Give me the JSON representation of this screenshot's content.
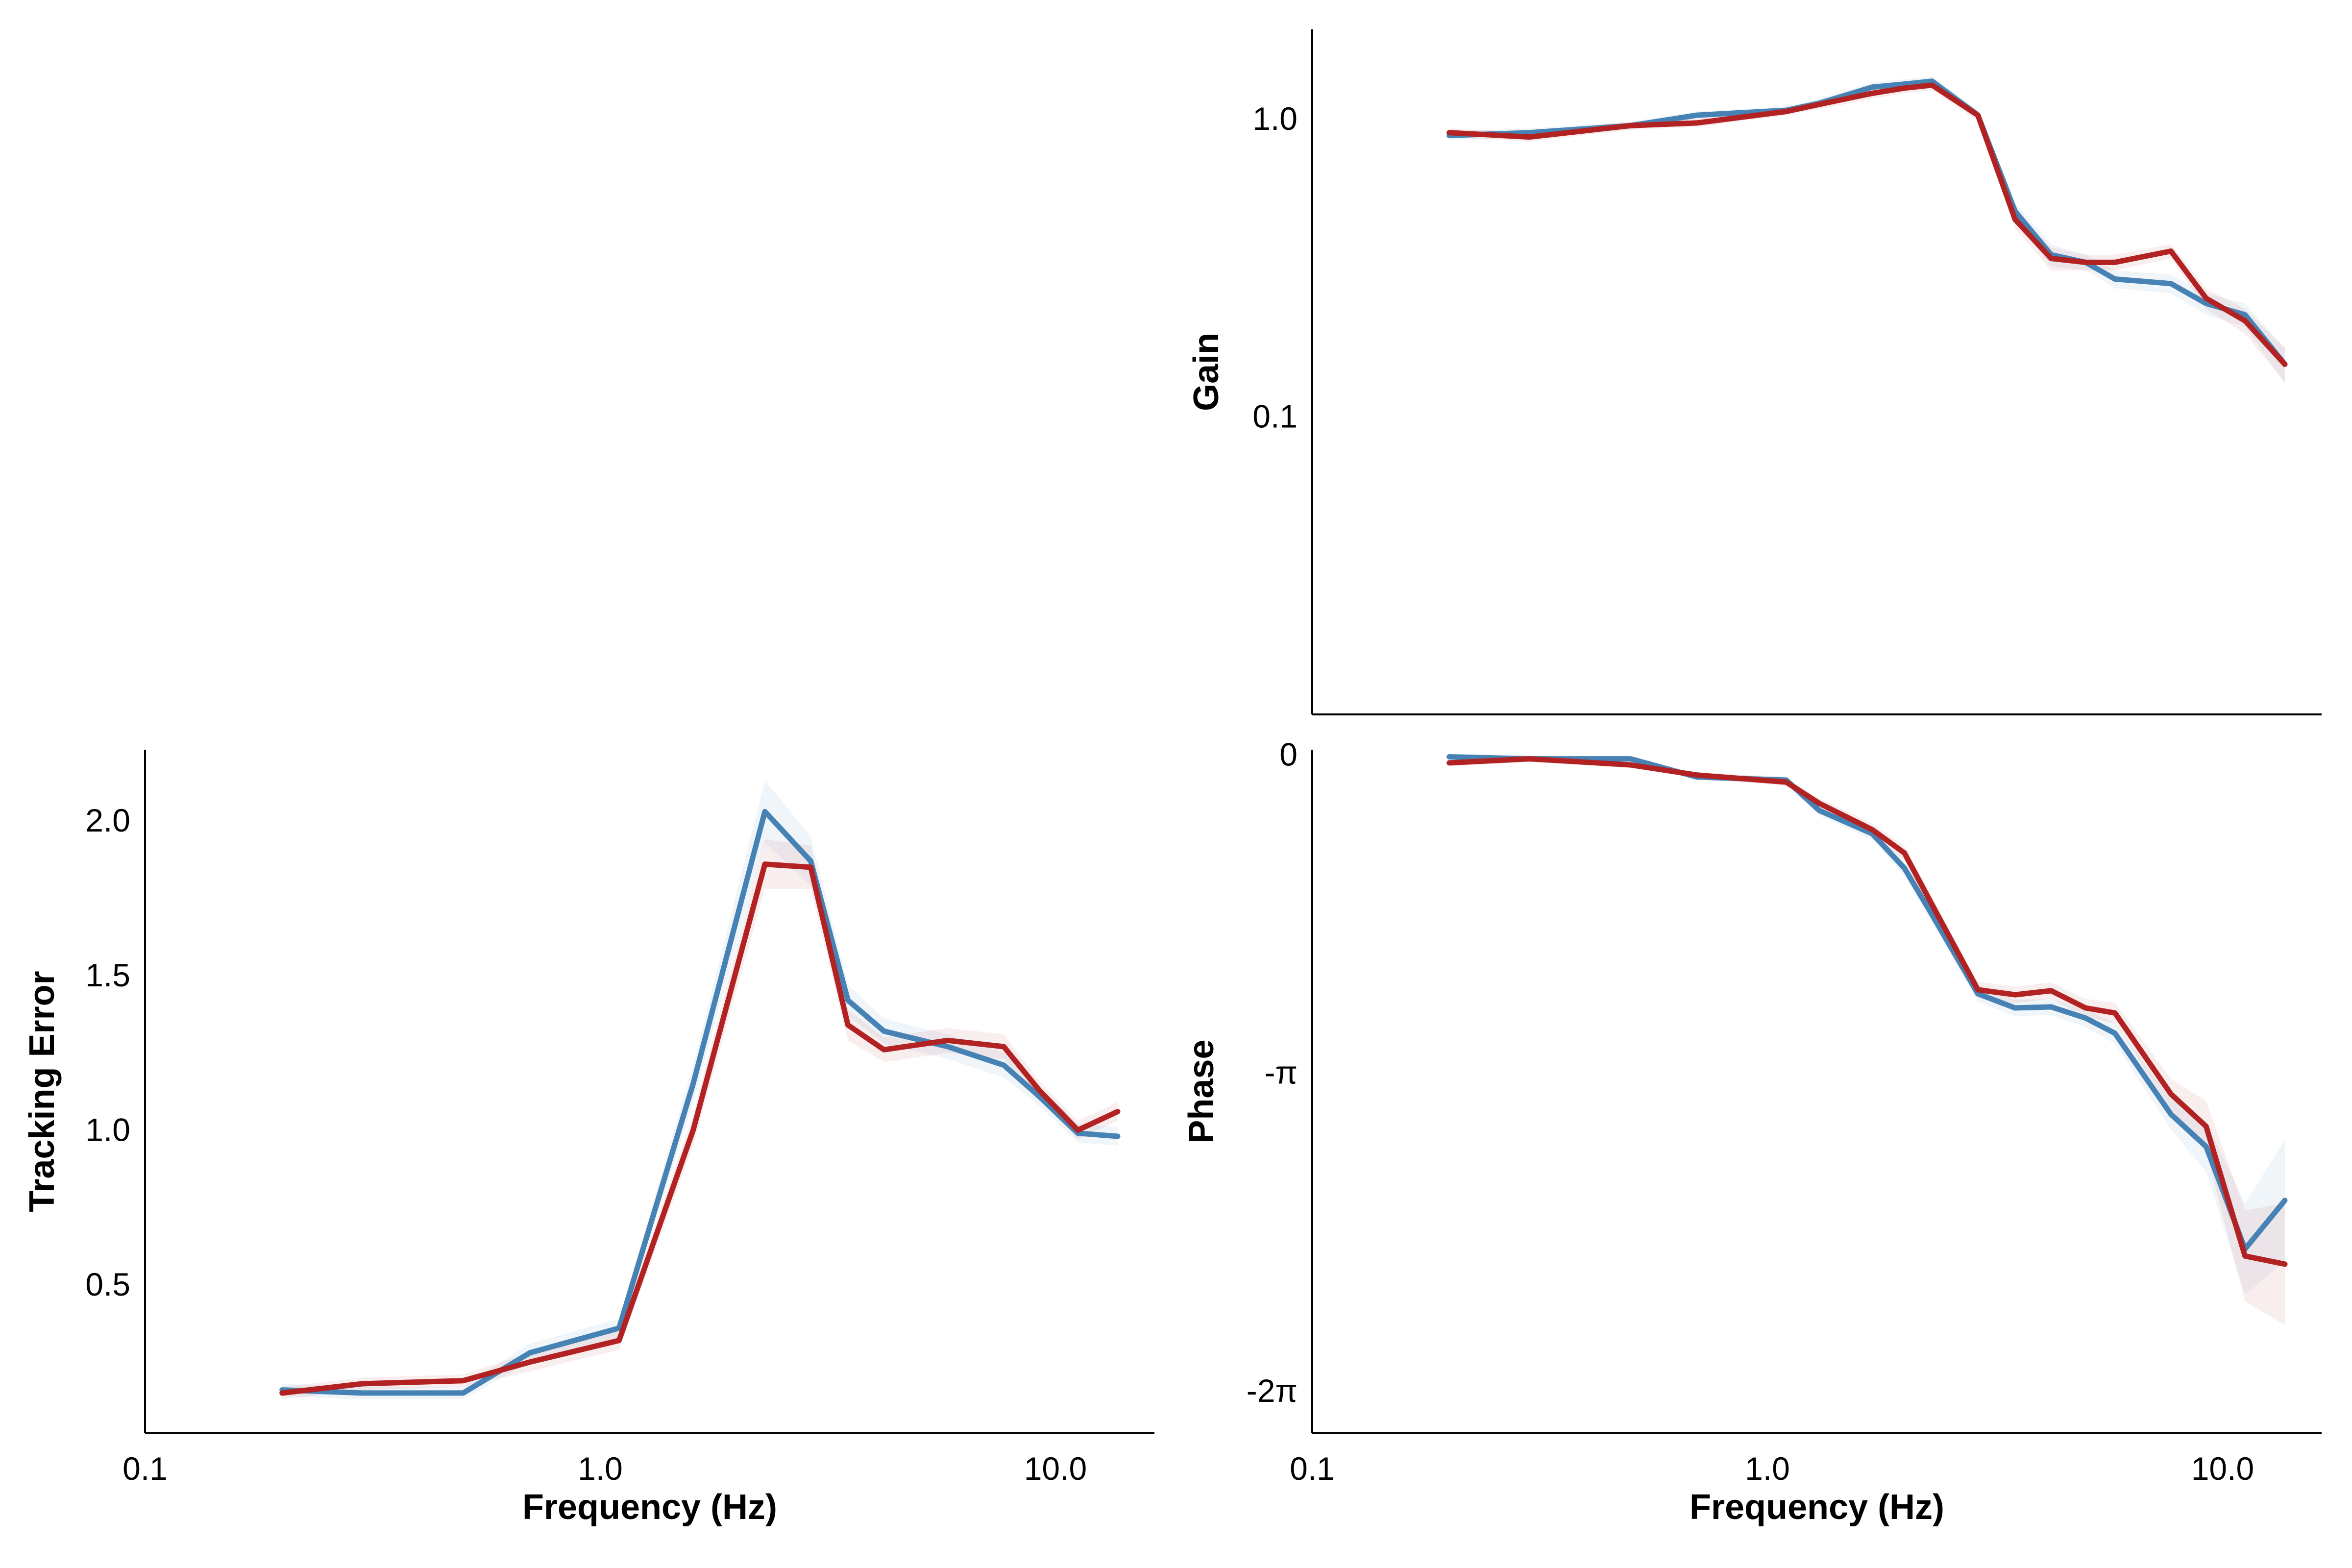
{
  "chart_data": [
    {
      "id": "tracking",
      "type": "line",
      "xlabel": "Frequency (Hz)",
      "ylabel": "Tracking Error",
      "xscale": "log",
      "xlim": [
        0.1,
        16.5
      ],
      "ylim": [
        0.02,
        2.23
      ],
      "xticks": [
        {
          "v": 0.1,
          "label": "0.1"
        },
        {
          "v": 1.0,
          "label": "1.0"
        },
        {
          "v": 10.0,
          "label": "10.0"
        }
      ],
      "yticks": [
        {
          "v": 0.5,
          "label": "0.5"
        },
        {
          "v": 1.0,
          "label": "1.0"
        },
        {
          "v": 1.5,
          "label": "1.5"
        },
        {
          "v": 2.0,
          "label": "2.0"
        }
      ],
      "grid": false,
      "series": [
        {
          "color": "#4682b4",
          "x": [
            0.2,
            0.3,
            0.5,
            0.7,
            1.1,
            1.6,
            2.3,
            2.9,
            3.5,
            4.2,
            5.8,
            7.7,
            9.2,
            11.2,
            13.7
          ],
          "y": [
            0.16,
            0.15,
            0.15,
            0.28,
            0.36,
            1.15,
            2.03,
            1.87,
            1.42,
            1.32,
            1.27,
            1.21,
            1.11,
            0.99,
            0.98
          ],
          "band": [
            0.02,
            0.02,
            0.02,
            0.03,
            0.03,
            0.06,
            0.1,
            0.08,
            0.05,
            0.04,
            0.04,
            0.04,
            0.03,
            0.03,
            0.03
          ]
        },
        {
          "color": "#b22222",
          "x": [
            0.2,
            0.3,
            0.5,
            0.7,
            1.1,
            1.6,
            2.3,
            2.9,
            3.5,
            4.2,
            5.8,
            7.7,
            9.2,
            11.2,
            13.7
          ],
          "y": [
            0.15,
            0.18,
            0.19,
            0.25,
            0.32,
            1.0,
            1.86,
            1.85,
            1.34,
            1.26,
            1.29,
            1.27,
            1.13,
            1.0,
            1.06
          ],
          "band": [
            0.02,
            0.02,
            0.02,
            0.03,
            0.03,
            0.05,
            0.08,
            0.07,
            0.05,
            0.04,
            0.04,
            0.04,
            0.03,
            0.03,
            0.03
          ]
        }
      ]
    },
    {
      "id": "gain",
      "type": "line",
      "xlabel": "",
      "ylabel": "Gain",
      "xscale": "log",
      "yscale": "log",
      "xlim": [
        0.1,
        16.5
      ],
      "ylim": [
        0.01,
        2.0
      ],
      "xticks": [],
      "yticks": [
        {
          "v": 0.1,
          "label": "0.1"
        },
        {
          "v": 1.0,
          "label": "1.0"
        }
      ],
      "grid": false,
      "series": [
        {
          "color": "#4682b4",
          "x": [
            0.2,
            0.3,
            0.5,
            0.7,
            1.1,
            1.3,
            1.7,
            2.0,
            2.3,
            2.9,
            3.5,
            4.2,
            5.0,
            5.8,
            7.7,
            9.2,
            11.2,
            13.7
          ],
          "y": [
            0.88,
            0.9,
            0.95,
            1.03,
            1.07,
            1.13,
            1.28,
            1.31,
            1.34,
            1.03,
            0.49,
            0.35,
            0.33,
            0.29,
            0.28,
            0.24,
            0.22,
            0.15
          ],
          "band": [
            0.03,
            0.03,
            0.03,
            0.03,
            0.03,
            0.04,
            0.05,
            0.05,
            0.05,
            0.04,
            0.03,
            0.03,
            0.02,
            0.02,
            0.02,
            0.02,
            0.02,
            0.02
          ]
        },
        {
          "color": "#b22222",
          "x": [
            0.2,
            0.3,
            0.5,
            0.7,
            1.1,
            1.3,
            1.7,
            2.0,
            2.3,
            2.9,
            3.5,
            4.2,
            5.0,
            5.8,
            7.7,
            9.2,
            11.2,
            13.7
          ],
          "y": [
            0.9,
            0.87,
            0.95,
            0.97,
            1.06,
            1.12,
            1.22,
            1.27,
            1.3,
            1.03,
            0.46,
            0.34,
            0.33,
            0.33,
            0.36,
            0.25,
            0.21,
            0.15
          ],
          "band": [
            0.03,
            0.03,
            0.03,
            0.03,
            0.03,
            0.04,
            0.05,
            0.05,
            0.05,
            0.04,
            0.03,
            0.03,
            0.02,
            0.02,
            0.02,
            0.02,
            0.02,
            0.02
          ]
        }
      ]
    },
    {
      "id": "phase",
      "type": "line",
      "xlabel": "Frequency (Hz)",
      "ylabel": "Phase",
      "xscale": "log",
      "xlim": [
        0.1,
        16.5
      ],
      "ylim": [
        -6.7,
        0.05
      ],
      "xticks": [
        {
          "v": 0.1,
          "label": "0.1"
        },
        {
          "v": 1.0,
          "label": "1.0"
        },
        {
          "v": 10.0,
          "label": "10.0"
        }
      ],
      "yticks": [
        {
          "v": 0,
          "label": "0"
        },
        {
          "v": -3.14159,
          "label": "-π"
        },
        {
          "v": -6.28319,
          "label": "-2π"
        }
      ],
      "grid": false,
      "series": [
        {
          "color": "#4682b4",
          "x": [
            0.2,
            0.3,
            0.5,
            0.7,
            1.1,
            1.3,
            1.7,
            2.0,
            2.3,
            2.9,
            3.5,
            4.2,
            5.0,
            5.8,
            7.7,
            9.2,
            11.2,
            13.7
          ],
          "y": [
            -0.02,
            -0.04,
            -0.04,
            -0.22,
            -0.25,
            -0.55,
            -0.78,
            -1.12,
            -1.58,
            -2.36,
            -2.5,
            -2.49,
            -2.6,
            -2.75,
            -3.55,
            -3.87,
            -4.88,
            -4.4
          ],
          "band": [
            0.03,
            0.03,
            0.03,
            0.03,
            0.04,
            0.05,
            0.06,
            0.07,
            0.08,
            0.08,
            0.08,
            0.08,
            0.09,
            0.1,
            0.15,
            0.25,
            0.45,
            0.6
          ]
        },
        {
          "color": "#b22222",
          "x": [
            0.2,
            0.3,
            0.5,
            0.7,
            1.1,
            1.3,
            1.7,
            2.0,
            2.3,
            2.9,
            3.5,
            4.2,
            5.0,
            5.8,
            7.7,
            9.2,
            11.2,
            13.7
          ],
          "y": [
            -0.08,
            -0.04,
            -0.1,
            -0.2,
            -0.27,
            -0.48,
            -0.74,
            -0.97,
            -1.48,
            -2.32,
            -2.37,
            -2.33,
            -2.5,
            -2.55,
            -3.35,
            -3.67,
            -4.95,
            -5.03
          ],
          "band": [
            0.03,
            0.03,
            0.03,
            0.03,
            0.04,
            0.05,
            0.06,
            0.07,
            0.08,
            0.08,
            0.08,
            0.08,
            0.09,
            0.1,
            0.15,
            0.25,
            0.45,
            0.6
          ]
        }
      ]
    }
  ]
}
